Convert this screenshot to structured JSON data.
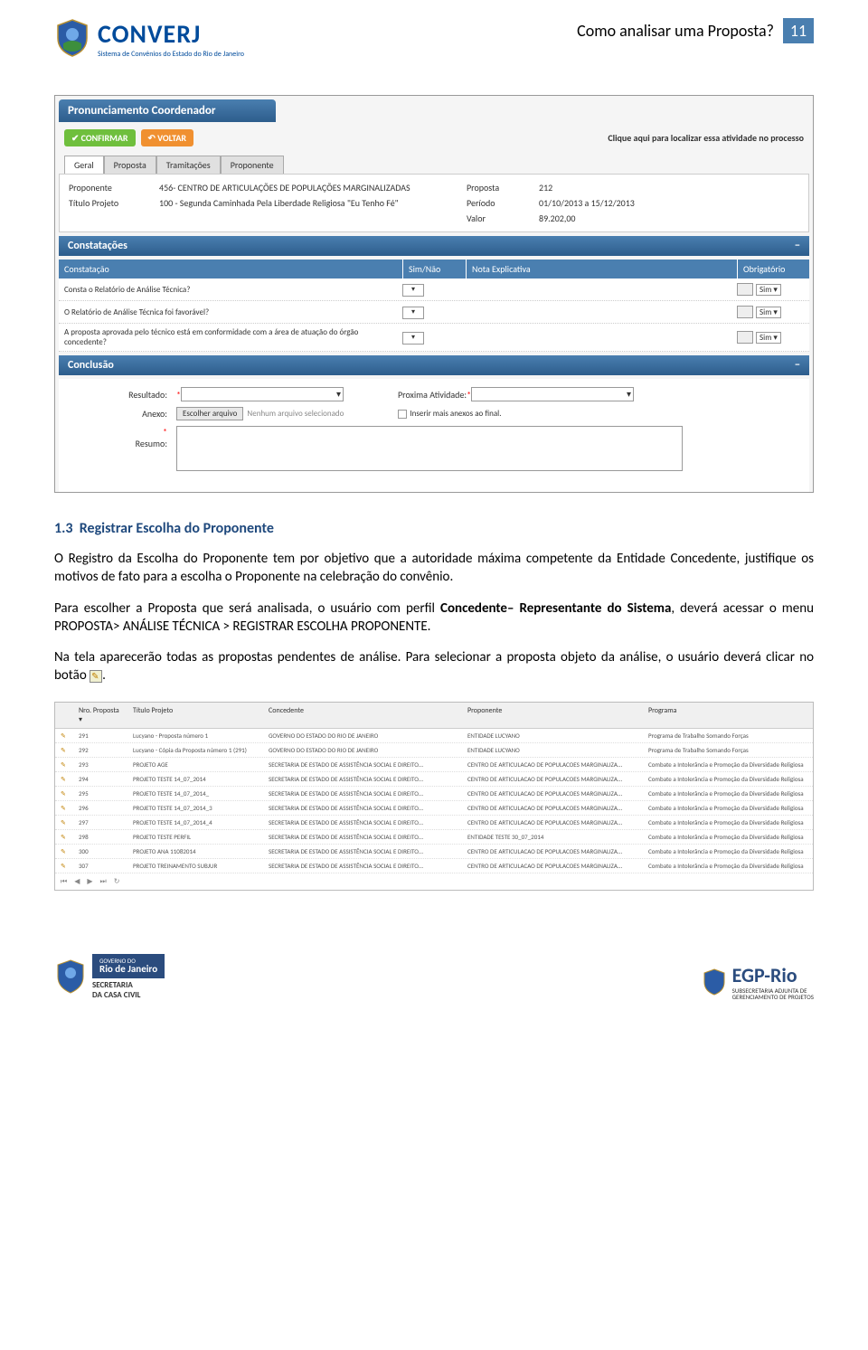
{
  "header": {
    "logo_title": "CONVERJ",
    "logo_sub": "Sistema de Convênios do Estado do Rio de Janeiro",
    "title": "Como analisar uma Proposta?",
    "page_number": "11"
  },
  "screenshot1": {
    "panel_title": "Pronunciamento Coordenador",
    "confirm": "✔ CONFIRMAR",
    "back": "↶ VOLTAR",
    "locate": "Clique aqui para localizar essa atividade no processo",
    "tabs": [
      "Geral",
      "Proposta",
      "Tramitações",
      "Proponente"
    ],
    "fields": {
      "proponente_label": "Proponente",
      "proponente_val": "456- CENTRO DE ARTICULAÇÕES DE POPULAÇÕES MARGINALIZADAS",
      "proposta_label": "Proposta",
      "proposta_val": "212",
      "titulo_label": "Título Projeto",
      "titulo_val": "100 - Segunda Caminhada Pela Liberdade Religiosa \"Eu Tenho Fé\"",
      "periodo_label": "Período",
      "periodo_val": "01/10/2013 a 15/12/2013",
      "valor_label": "Valor",
      "valor_val": "89.202,00"
    },
    "constatacoes_title": "Constatações",
    "cols": {
      "constatacao": "Constatação",
      "simnao": "Sim/Não",
      "nota": "Nota Explicativa",
      "obrig": "Obrigatório"
    },
    "rows": [
      "Consta o Relatório de Análise Técnica?",
      "O Relatório de Análise Técnica foi favorável?",
      "A proposta aprovada pelo técnico está em conformidade com a área de atuação do órgão concedente?"
    ],
    "sim": "Sim ▾",
    "conclusao_title": "Conclusão",
    "resultado_label": "Resultado:",
    "prox_label": "Proxima Atividade:",
    "anexo_label": "Anexo:",
    "escolher": "Escolher arquivo",
    "no_file": "Nenhum arquivo selecionado",
    "inserir": "Inserir mais anexos ao final.",
    "resumo_label": "Resumo:"
  },
  "body": {
    "section_num": "1.3",
    "section_title": "Registrar Escolha do Proponente",
    "p1": "O Registro da Escolha do Proponente tem por objetivo que  a autoridade máxima competente da Entidade Concedente, justifique os motivos de fato para a escolha o Proponente na celebração  do convênio.",
    "p2a": "Para escolher a Proposta que será analisada, o usuário com perfil ",
    "p2b": "Concedente– Representante do Sistema",
    "p2c": ", deverá acessar o menu PROPOSTA> ANÁLISE TÉCNICA > REGISTRAR ESCOLHA PROPONENTE.",
    "p3a": "Na tela aparecerão todas as propostas pendentes de análise. Para selecionar a proposta objeto da análise, o usuário deverá clicar no botão ",
    "p3b": "."
  },
  "screenshot2": {
    "headers": [
      "",
      "Nro. Proposta ▾",
      "Título Projeto",
      "Concedente",
      "Proponente",
      "Programa"
    ],
    "rows": [
      [
        "291",
        "Lucyano - Proposta número 1",
        "GOVERNO DO ESTADO DO RIO DE JANEIRO",
        "ENTIDADE LUCYANO",
        "Programa de Trabalho Somando Forças"
      ],
      [
        "292",
        "Lucyano - Cópia da Proposta número 1 (291)",
        "GOVERNO DO ESTADO DO RIO DE JANEIRO",
        "ENTIDADE LUCYANO",
        "Programa de Trabalho Somando Forças"
      ],
      [
        "293",
        "PROJETO AGE",
        "SECRETARIA DE ESTADO DE ASSISTÊNCIA SOCIAL E DIREITO...",
        "CENTRO DE ARTICULACAO DE POPULACOES MARGINALIZA...",
        "Combate a Intolerância e Promoção da Diversidade Religiosa"
      ],
      [
        "294",
        "PROJETO TESTE 14_07_2014",
        "SECRETARIA DE ESTADO DE ASSISTÊNCIA SOCIAL E DIREITO...",
        "CENTRO DE ARTICULACAO DE POPULACOES MARGINALIZA...",
        "Combate a Intolerância e Promoção da Diversidade Religiosa"
      ],
      [
        "295",
        "PROJETO TESTE 14_07_2014_",
        "SECRETARIA DE ESTADO DE ASSISTÊNCIA SOCIAL E DIREITO...",
        "CENTRO DE ARTICULACAO DE POPULACOES MARGINALIZA...",
        "Combate a Intolerância e Promoção da Diversidade Religiosa"
      ],
      [
        "296",
        "PROJETO TESTE 14_07_2014_3",
        "SECRETARIA DE ESTADO DE ASSISTÊNCIA SOCIAL E DIREITO...",
        "CENTRO DE ARTICULACAO DE POPULACOES MARGINALIZA...",
        "Combate a Intolerância e Promoção da Diversidade Religiosa"
      ],
      [
        "297",
        "PROJETO TESTE 14_07_2014_4",
        "SECRETARIA DE ESTADO DE ASSISTÊNCIA SOCIAL E DIREITO...",
        "CENTRO DE ARTICULACAO DE POPULACOES MARGINALIZA...",
        "Combate a Intolerância e Promoção da Diversidade Religiosa"
      ],
      [
        "298",
        "PROJETO TESTE PERFIL",
        "SECRETARIA DE ESTADO DE ASSISTÊNCIA SOCIAL E DIREITO...",
        "ENTIDADE TESTE 30_07_2014",
        "Combate a Intolerância e Promoção da Diversidade Religiosa"
      ],
      [
        "300",
        "PROJETO ANA 11082014",
        "SECRETARIA DE ESTADO DE ASSISTÊNCIA SOCIAL E DIREITO...",
        "CENTRO DE ARTICULACAO DE POPULACOES MARGINALIZA...",
        "Combate a Intolerância e Promoção da Diversidade Religiosa"
      ],
      [
        "307",
        "PROJETO TREINAMENTO SUBJUR",
        "SECRETARIA DE ESTADO DE ASSISTÊNCIA SOCIAL E DIREITO...",
        "CENTRO DE ARTICULACAO DE POPULACOES MARGINALIZA...",
        "Combate a Intolerância e Promoção da Diversidade Religiosa"
      ]
    ],
    "pager": [
      "⏮",
      "◀",
      "▶",
      "⏭",
      "↻"
    ]
  },
  "footer": {
    "governo1": "GOVERNO DO",
    "governo2": "Rio de Janeiro",
    "secretaria1": "SECRETARIA",
    "secretaria2": "DA CASA CIVIL",
    "egp": "EGP-Rio",
    "egp_sub1": "SUBSECRETARIA ADJUNTA DE",
    "egp_sub2": "GERENCIAMENTO DE PROJETOS"
  }
}
